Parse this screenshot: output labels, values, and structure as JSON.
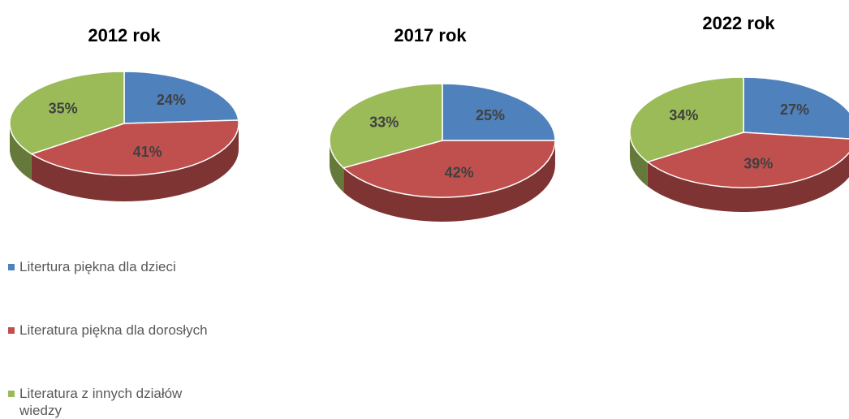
{
  "chart_data": [
    {
      "type": "pie",
      "title": "2012 rok",
      "categories": [
        "Litertura piękna dla dzieci",
        "Literatura piękna dla dorosłych",
        "Literatura z innych działów wiedzy"
      ],
      "values": [
        24,
        41,
        35
      ],
      "value_labels": [
        "24%",
        "41%",
        "35%"
      ],
      "colors": [
        "#4f81bd",
        "#c0504d",
        "#9bbb59"
      ]
    },
    {
      "type": "pie",
      "title": "2017 rok",
      "categories": [
        "Litertura piękna dla dzieci",
        "Literatura piękna dla dorosłych",
        "Literatura z innych działów wiedzy"
      ],
      "values": [
        25,
        42,
        33
      ],
      "value_labels": [
        "25%",
        "42%",
        "33%"
      ],
      "colors": [
        "#4f81bd",
        "#c0504d",
        "#9bbb59"
      ]
    },
    {
      "type": "pie",
      "title": "2022 rok",
      "categories": [
        "Litertura piękna dla dzieci",
        "Literatura piękna dla dorosłych",
        "Literatura z innych działów wiedzy"
      ],
      "values": [
        27,
        39,
        34
      ],
      "value_labels": [
        "27%",
        "39%",
        "34%"
      ],
      "colors": [
        "#4f81bd",
        "#c0504d",
        "#9bbb59"
      ]
    }
  ]
}
